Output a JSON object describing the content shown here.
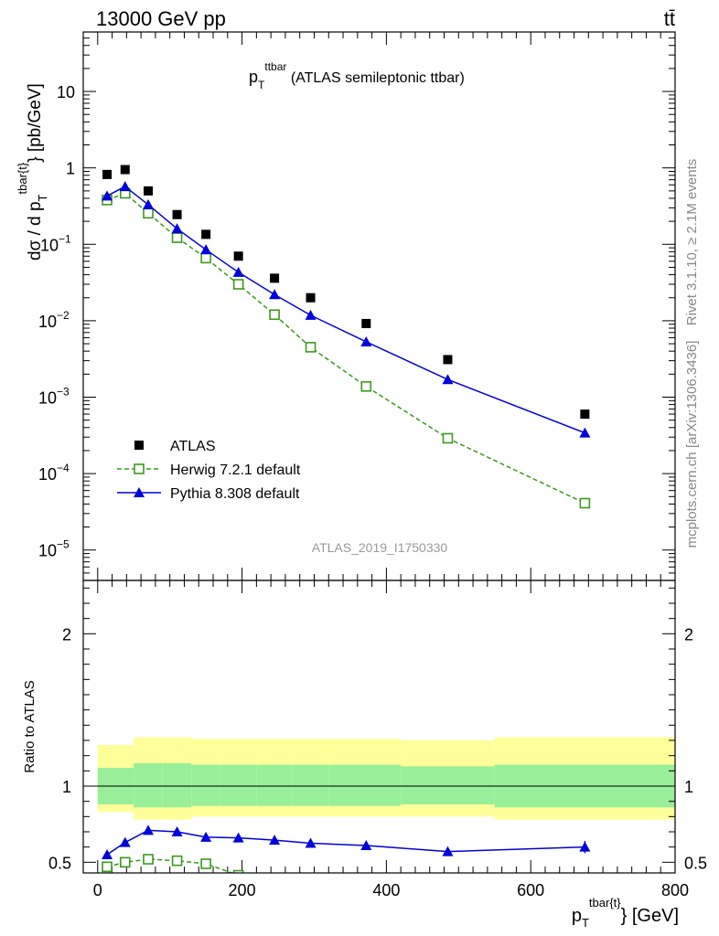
{
  "header": {
    "energy_label": "13000 GeV pp",
    "process_label": "tt̄"
  },
  "side_labels": {
    "rivet": "Rivet 3.1.10, ≥ 2.1M events",
    "mcplots": "mcplots.cern.ch [arXiv:1306.3436]"
  },
  "chart_data": [
    {
      "type": "scatter",
      "title_main": "p",
      "title_sub": "T",
      "title_sup": "ttbar",
      "title_rest": " (ATLAS semileptonic ttbar)",
      "analysis_id": "ATLAS_2019_I1750330",
      "ylabel": "dσ / d p_T^{tbar{t}} [pb/GeV]",
      "ylabel_main": "dσ / d p",
      "ylabel_sub": "T",
      "ylabel_sup": "tbar{t}",
      "ylabel_rest": "} [pb/GeV]",
      "yscale": "log",
      "xlim": [
        -20,
        800
      ],
      "ylim": [
        4e-06,
        60
      ],
      "y_ticks": [
        {
          "value": 1e-05,
          "base": "10",
          "exp": "−5"
        },
        {
          "value": 0.0001,
          "base": "10",
          "exp": "−4"
        },
        {
          "value": 0.001,
          "base": "10",
          "exp": "−3"
        },
        {
          "value": 0.01,
          "base": "10",
          "exp": "−2"
        },
        {
          "value": 0.1,
          "base": "10",
          "exp": "−1"
        },
        {
          "value": 1,
          "base": "1",
          "exp": ""
        },
        {
          "value": 10,
          "base": "10",
          "exp": ""
        }
      ],
      "legend_position": "lower-left",
      "series": [
        {
          "name": "ATLAS",
          "color": "#000000",
          "marker": "filled-square",
          "x": [
            13,
            38,
            70,
            110,
            150,
            195,
            245,
            295,
            372,
            485,
            675
          ],
          "y": [
            0.82,
            0.95,
            0.5,
            0.245,
            0.135,
            0.07,
            0.036,
            0.02,
            0.0092,
            0.0031,
            0.0006
          ]
        },
        {
          "name": "Herwig 7.2.1 default",
          "color": "#3a9a1a",
          "marker": "open-square",
          "line": "dashed",
          "x": [
            13,
            38,
            70,
            110,
            150,
            195,
            245,
            295,
            372,
            485,
            675
          ],
          "y": [
            0.38,
            0.465,
            0.255,
            0.122,
            0.066,
            0.03,
            0.012,
            0.0045,
            0.00138,
            0.00029,
            4.1e-05
          ]
        },
        {
          "name": "Pythia 8.308 default",
          "color": "#0000dd",
          "marker": "filled-triangle",
          "line": "solid",
          "x": [
            13,
            38,
            70,
            110,
            150,
            195,
            245,
            295,
            372,
            485,
            675
          ],
          "y": [
            0.43,
            0.57,
            0.33,
            0.16,
            0.085,
            0.043,
            0.022,
            0.0118,
            0.0053,
            0.0017,
            0.00034
          ]
        }
      ]
    },
    {
      "type": "scatter",
      "ylabel": "Ratio to ATLAS",
      "xlabel_main": "p",
      "xlabel_sub": "T",
      "xlabel_sup": "tbar{t}",
      "xlabel_rest": "} [GeV]",
      "xlim": [
        -20,
        800
      ],
      "ylim": [
        0.43,
        2.35
      ],
      "x_ticks": [
        0,
        200,
        400,
        600,
        800
      ],
      "y_ticks": [
        0.5,
        1,
        2
      ],
      "reference_line": 1,
      "uncertainty_bins": [
        {
          "lo": 0,
          "hi": 25,
          "stat": [
            0.88,
            1.12
          ],
          "total": [
            0.83,
            1.27
          ]
        },
        {
          "lo": 25,
          "hi": 50,
          "stat": [
            0.88,
            1.12
          ],
          "total": [
            0.83,
            1.27
          ]
        },
        {
          "lo": 50,
          "hi": 90,
          "stat": [
            0.86,
            1.15
          ],
          "total": [
            0.78,
            1.32
          ]
        },
        {
          "lo": 90,
          "hi": 130,
          "stat": [
            0.86,
            1.15
          ],
          "total": [
            0.78,
            1.32
          ]
        },
        {
          "lo": 130,
          "hi": 170,
          "stat": [
            0.87,
            1.14
          ],
          "total": [
            0.8,
            1.31
          ]
        },
        {
          "lo": 170,
          "hi": 220,
          "stat": [
            0.87,
            1.14
          ],
          "total": [
            0.8,
            1.31
          ]
        },
        {
          "lo": 220,
          "hi": 270,
          "stat": [
            0.87,
            1.14
          ],
          "total": [
            0.8,
            1.31
          ]
        },
        {
          "lo": 270,
          "hi": 320,
          "stat": [
            0.87,
            1.14
          ],
          "total": [
            0.8,
            1.31
          ]
        },
        {
          "lo": 320,
          "hi": 420,
          "stat": [
            0.87,
            1.14
          ],
          "total": [
            0.8,
            1.31
          ]
        },
        {
          "lo": 420,
          "hi": 550,
          "stat": [
            0.88,
            1.13
          ],
          "total": [
            0.8,
            1.3
          ]
        },
        {
          "lo": 550,
          "hi": 800,
          "stat": [
            0.86,
            1.14
          ],
          "total": [
            0.78,
            1.32
          ]
        }
      ],
      "series": [
        {
          "name": "Herwig 7.2.1 default",
          "color": "#3a9a1a",
          "marker": "open-square",
          "line": "dashed",
          "x": [
            13,
            38,
            70,
            110,
            150,
            195
          ],
          "y": [
            0.47,
            0.5,
            0.52,
            0.51,
            0.49,
            0.415
          ],
          "continues_below_to": {
            "x": 215,
            "y": 0.38
          }
        },
        {
          "name": "Pythia 8.308 default",
          "color": "#0000dd",
          "marker": "filled-triangle",
          "line": "solid",
          "x": [
            13,
            38,
            70,
            110,
            150,
            195,
            245,
            295,
            372,
            485,
            675
          ],
          "y": [
            0.55,
            0.63,
            0.71,
            0.7,
            0.665,
            0.66,
            0.645,
            0.625,
            0.61,
            0.57,
            0.6
          ],
          "err": [
            0,
            0,
            0,
            0,
            0,
            0,
            0,
            0,
            0,
            0.025,
            0.04
          ]
        }
      ]
    }
  ]
}
